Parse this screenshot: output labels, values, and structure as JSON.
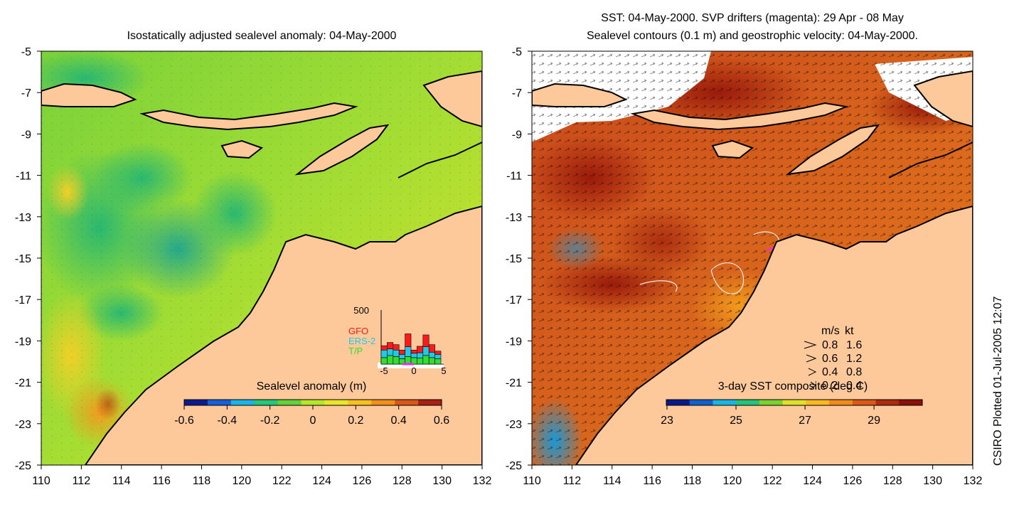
{
  "left_panel": {
    "title": "Isostatically adjusted sealevel anomaly: 04-May-2000",
    "colorbar_label": "Sealevel anomaly (m)",
    "colorbar_ticks": [
      "-0.6",
      "-0.4",
      "-0.2",
      "0",
      "0.2",
      "0.4",
      "0.6"
    ],
    "colorbar_colors": [
      "#0b1a8f",
      "#1560d8",
      "#19b4e6",
      "#23c87a",
      "#63d23a",
      "#b4e62a",
      "#e8e628",
      "#f7c020",
      "#f09018",
      "#d8581a",
      "#a82012"
    ],
    "inset": {
      "y_label": "500",
      "x_ticks": [
        "-5",
        "0",
        "5"
      ],
      "legend": [
        {
          "label": "GFO",
          "color": "#ff1a1a"
        },
        {
          "label": "ERS-2",
          "color": "#22c8e8"
        },
        {
          "label": "T/P",
          "color": "#33dd33"
        }
      ],
      "bars": [
        {
          "day": -5,
          "tp": 60,
          "ers": 70,
          "gfo": 40
        },
        {
          "day": -4,
          "tp": 80,
          "ers": 60,
          "gfo": 60
        },
        {
          "day": -3,
          "tp": 70,
          "ers": 60,
          "gfo": 50
        },
        {
          "day": -2,
          "tp": 50,
          "ers": 40,
          "gfo": 40
        },
        {
          "day": -1,
          "tp": 70,
          "ers": 90,
          "gfo": 120
        },
        {
          "day": 0,
          "tp": 60,
          "ers": 40,
          "gfo": 30
        },
        {
          "day": 1,
          "tp": 55,
          "ers": 50,
          "gfo": 60
        },
        {
          "day": 2,
          "tp": 80,
          "ers": 80,
          "gfo": 110
        },
        {
          "day": 3,
          "tp": 60,
          "ers": 50,
          "gfo": 70
        },
        {
          "day": 4,
          "tp": 50,
          "ers": 40,
          "gfo": 30
        }
      ]
    }
  },
  "right_panel": {
    "title_line1": "SST: 04-May-2000. SVP drifters (magenta): 29 Apr - 08 May",
    "title_line2": "Sealevel contours (0.1 m) and geostrophic velocity: 04-May-2000.",
    "colorbar_label": "3-day SST composite (deg C)",
    "colorbar_ticks": [
      "23",
      "25",
      "27",
      "29"
    ],
    "colorbar_colors": [
      "#081a8a",
      "#1060d0",
      "#18b4e4",
      "#22c47a",
      "#7ad232",
      "#dfe028",
      "#f8b820",
      "#f08a18",
      "#dc5818",
      "#b02a12",
      "#8a1008"
    ],
    "velocity_legend": {
      "header_ms": "m/s",
      "header_kt": "kt",
      "rows": [
        {
          "ms": "0.8",
          "kt": "1.6"
        },
        {
          "ms": "0.6",
          "kt": "1.2"
        },
        {
          "ms": "0.4",
          "kt": "0.8"
        },
        {
          "ms": "0.2",
          "kt": "0.4"
        }
      ]
    }
  },
  "axes": {
    "x_ticks": [
      "110",
      "112",
      "114",
      "116",
      "118",
      "120",
      "122",
      "124",
      "126",
      "128",
      "130",
      "132"
    ],
    "y_ticks": [
      "-5",
      "-7",
      "-9",
      "-11",
      "-13",
      "-15",
      "-17",
      "-19",
      "-21",
      "-23",
      "-25"
    ]
  },
  "colors": {
    "land": "#fdc89a",
    "coast": "#000000",
    "cloud": "#ffffff",
    "drifter": "#ff22ff"
  },
  "credit": "CSIRO Plotted 01-Jul-2005 12:07"
}
